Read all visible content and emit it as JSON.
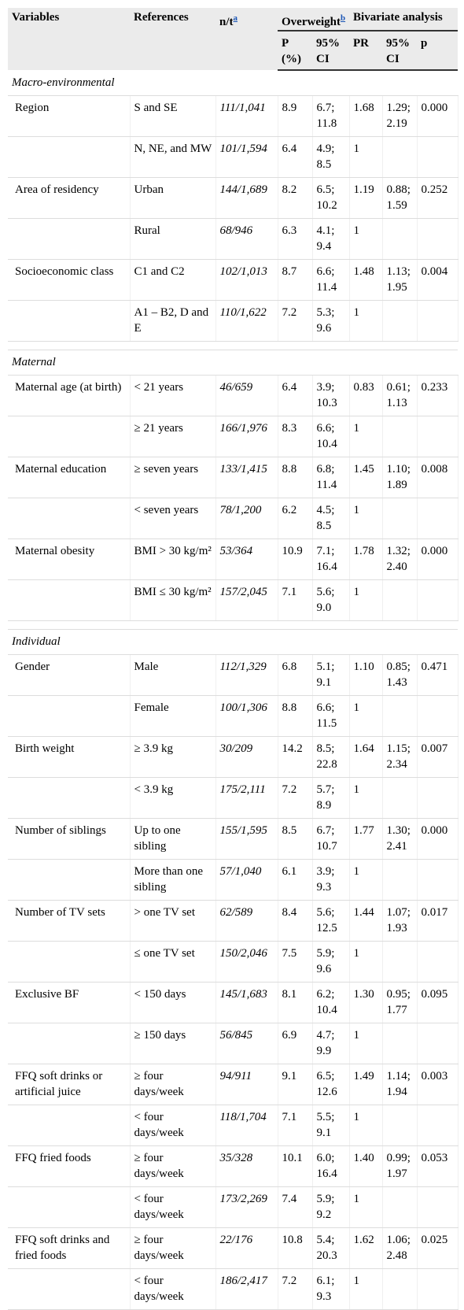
{
  "table": {
    "header": {
      "variables": "Variables",
      "references": "References",
      "nt": "n/t",
      "nt_note": "a",
      "overweight": "Overweight",
      "overweight_note": "b",
      "bivariate": "Bivariate analysis",
      "p_percent": "P (%)",
      "ci_p": "95% CI",
      "pr": "PR",
      "ci_pr": "95% CI",
      "p": "p"
    },
    "sections": [
      {
        "title": "Macro-environmental",
        "rows": [
          [
            "Region",
            "S and SE",
            "111/1,041",
            "8.9",
            "6.7; 11.8",
            "1.68",
            "1.29; 2.19",
            "0.000"
          ],
          [
            null,
            "N, NE, and MW",
            "101/1,594",
            "6.4",
            "4.9; 8.5",
            "1",
            null,
            null
          ],
          [
            "Area of residency",
            "Urban",
            "144/1,689",
            "8.2",
            "6.5; 10.2",
            "1.19",
            "0.88; 1.59",
            "0.252"
          ],
          [
            null,
            "Rural",
            "68/946",
            "6.3",
            "4.1; 9.4",
            "1",
            null,
            null
          ],
          [
            "Socioeconomic class",
            "C1 and C2",
            "102/1,013",
            "8.7",
            "6.6; 11.4",
            "1.48",
            "1.13; 1.95",
            "0.004"
          ],
          [
            null,
            "A1 – B2, D and E",
            "110/1,622",
            "7.2",
            "5.3; 9.6",
            "1",
            null,
            null
          ]
        ]
      },
      {
        "title": "Maternal",
        "rows": [
          [
            "Maternal age (at birth)",
            "< 21 years",
            "46/659",
            "6.4",
            "3.9; 10.3",
            "0.83",
            "0.61; 1.13",
            "0.233"
          ],
          [
            null,
            "≥ 21 years",
            "166/1,976",
            "8.3",
            "6.6; 10.4",
            "1",
            null,
            null
          ],
          [
            "Maternal education",
            "≥ seven years",
            "133/1,415",
            "8.8",
            "6.8; 11.4",
            "1.45",
            "1.10; 1.89",
            "0.008"
          ],
          [
            null,
            "< seven years",
            "78/1,200",
            "6.2",
            "4.5; 8.5",
            "1",
            null,
            null
          ],
          [
            "Maternal obesity",
            "BMI > 30 kg/m²",
            "53/364",
            "10.9",
            "7.1; 16.4",
            "1.78",
            "1.32; 2.40",
            "0.000"
          ],
          [
            null,
            "BMI ≤ 30 kg/m²",
            "157/2,045",
            "7.1",
            "5.6; 9.0",
            "1",
            null,
            null
          ]
        ]
      },
      {
        "title": "Individual",
        "rows": [
          [
            "Gender",
            "Male",
            "112/1,329",
            "6.8",
            "5.1; 9.1",
            "1.10",
            "0.85; 1.43",
            "0.471"
          ],
          [
            null,
            "Female",
            "100/1,306",
            "8.8",
            "6.6; 11.5",
            "1",
            null,
            null
          ],
          [
            "Birth weight",
            "≥ 3.9 kg",
            "30/209",
            "14.2",
            "8.5; 22.8",
            "1.64",
            "1.15; 2.34",
            "0.007"
          ],
          [
            null,
            "< 3.9 kg",
            "175/2,111",
            "7.2",
            "5.7; 8.9",
            "1",
            null,
            null
          ],
          [
            "Number of siblings",
            "Up to one sibling",
            "155/1,595",
            "8.5",
            "6.7; 10.7",
            "1.77",
            "1.30; 2.41",
            "0.000"
          ],
          [
            null,
            "More than one sibling",
            "57/1,040",
            "6.1",
            "3.9; 9.3",
            "1",
            null,
            null
          ],
          [
            "Number of TV sets",
            "> one TV set",
            "62/589",
            "8.4",
            "5.6; 12.5",
            "1.44",
            "1.07; 1.93",
            "0.017"
          ],
          [
            null,
            "≤ one TV set",
            "150/2,046",
            "7.5",
            "5.9; 9.6",
            "1",
            null,
            null
          ],
          [
            "Exclusive BF",
            "< 150 days",
            "145/1,683",
            "8.1",
            "6.2; 10.4",
            "1.30",
            "0.95; 1.77",
            "0.095"
          ],
          [
            null,
            "≥ 150 days",
            "56/845",
            "6.9",
            "4.7; 9.9",
            "1",
            null,
            null
          ],
          [
            "FFQ soft drinks or artificial juice",
            "≥ four days/week",
            "94/911",
            "9.1",
            "6.5; 12.6",
            "1.49",
            "1.14; 1.94",
            "0.003"
          ],
          [
            null,
            "< four days/week",
            "118/1,704",
            "7.1",
            "5.5; 9.1",
            "1",
            null,
            null
          ],
          [
            "FFQ fried foods",
            "≥ four days/week",
            "35/328",
            "10.1",
            "6.0; 16.4",
            "1.40",
            "0.99; 1.97",
            "0.053"
          ],
          [
            null,
            "< four days/week",
            "173/2,269",
            "7.4",
            "5.9; 9.2",
            "1",
            null,
            null
          ],
          [
            "FFQ soft drinks and fried foods",
            "≥ four days/week",
            "22/176",
            "10.8",
            "5.4; 20.3",
            "1.62",
            "1.06; 2.48",
            "0.025"
          ],
          [
            null,
            "< four days/week",
            "186/2,417",
            "7.2",
            "6.1; 9.3",
            "1",
            null,
            null
          ]
        ]
      }
    ]
  }
}
